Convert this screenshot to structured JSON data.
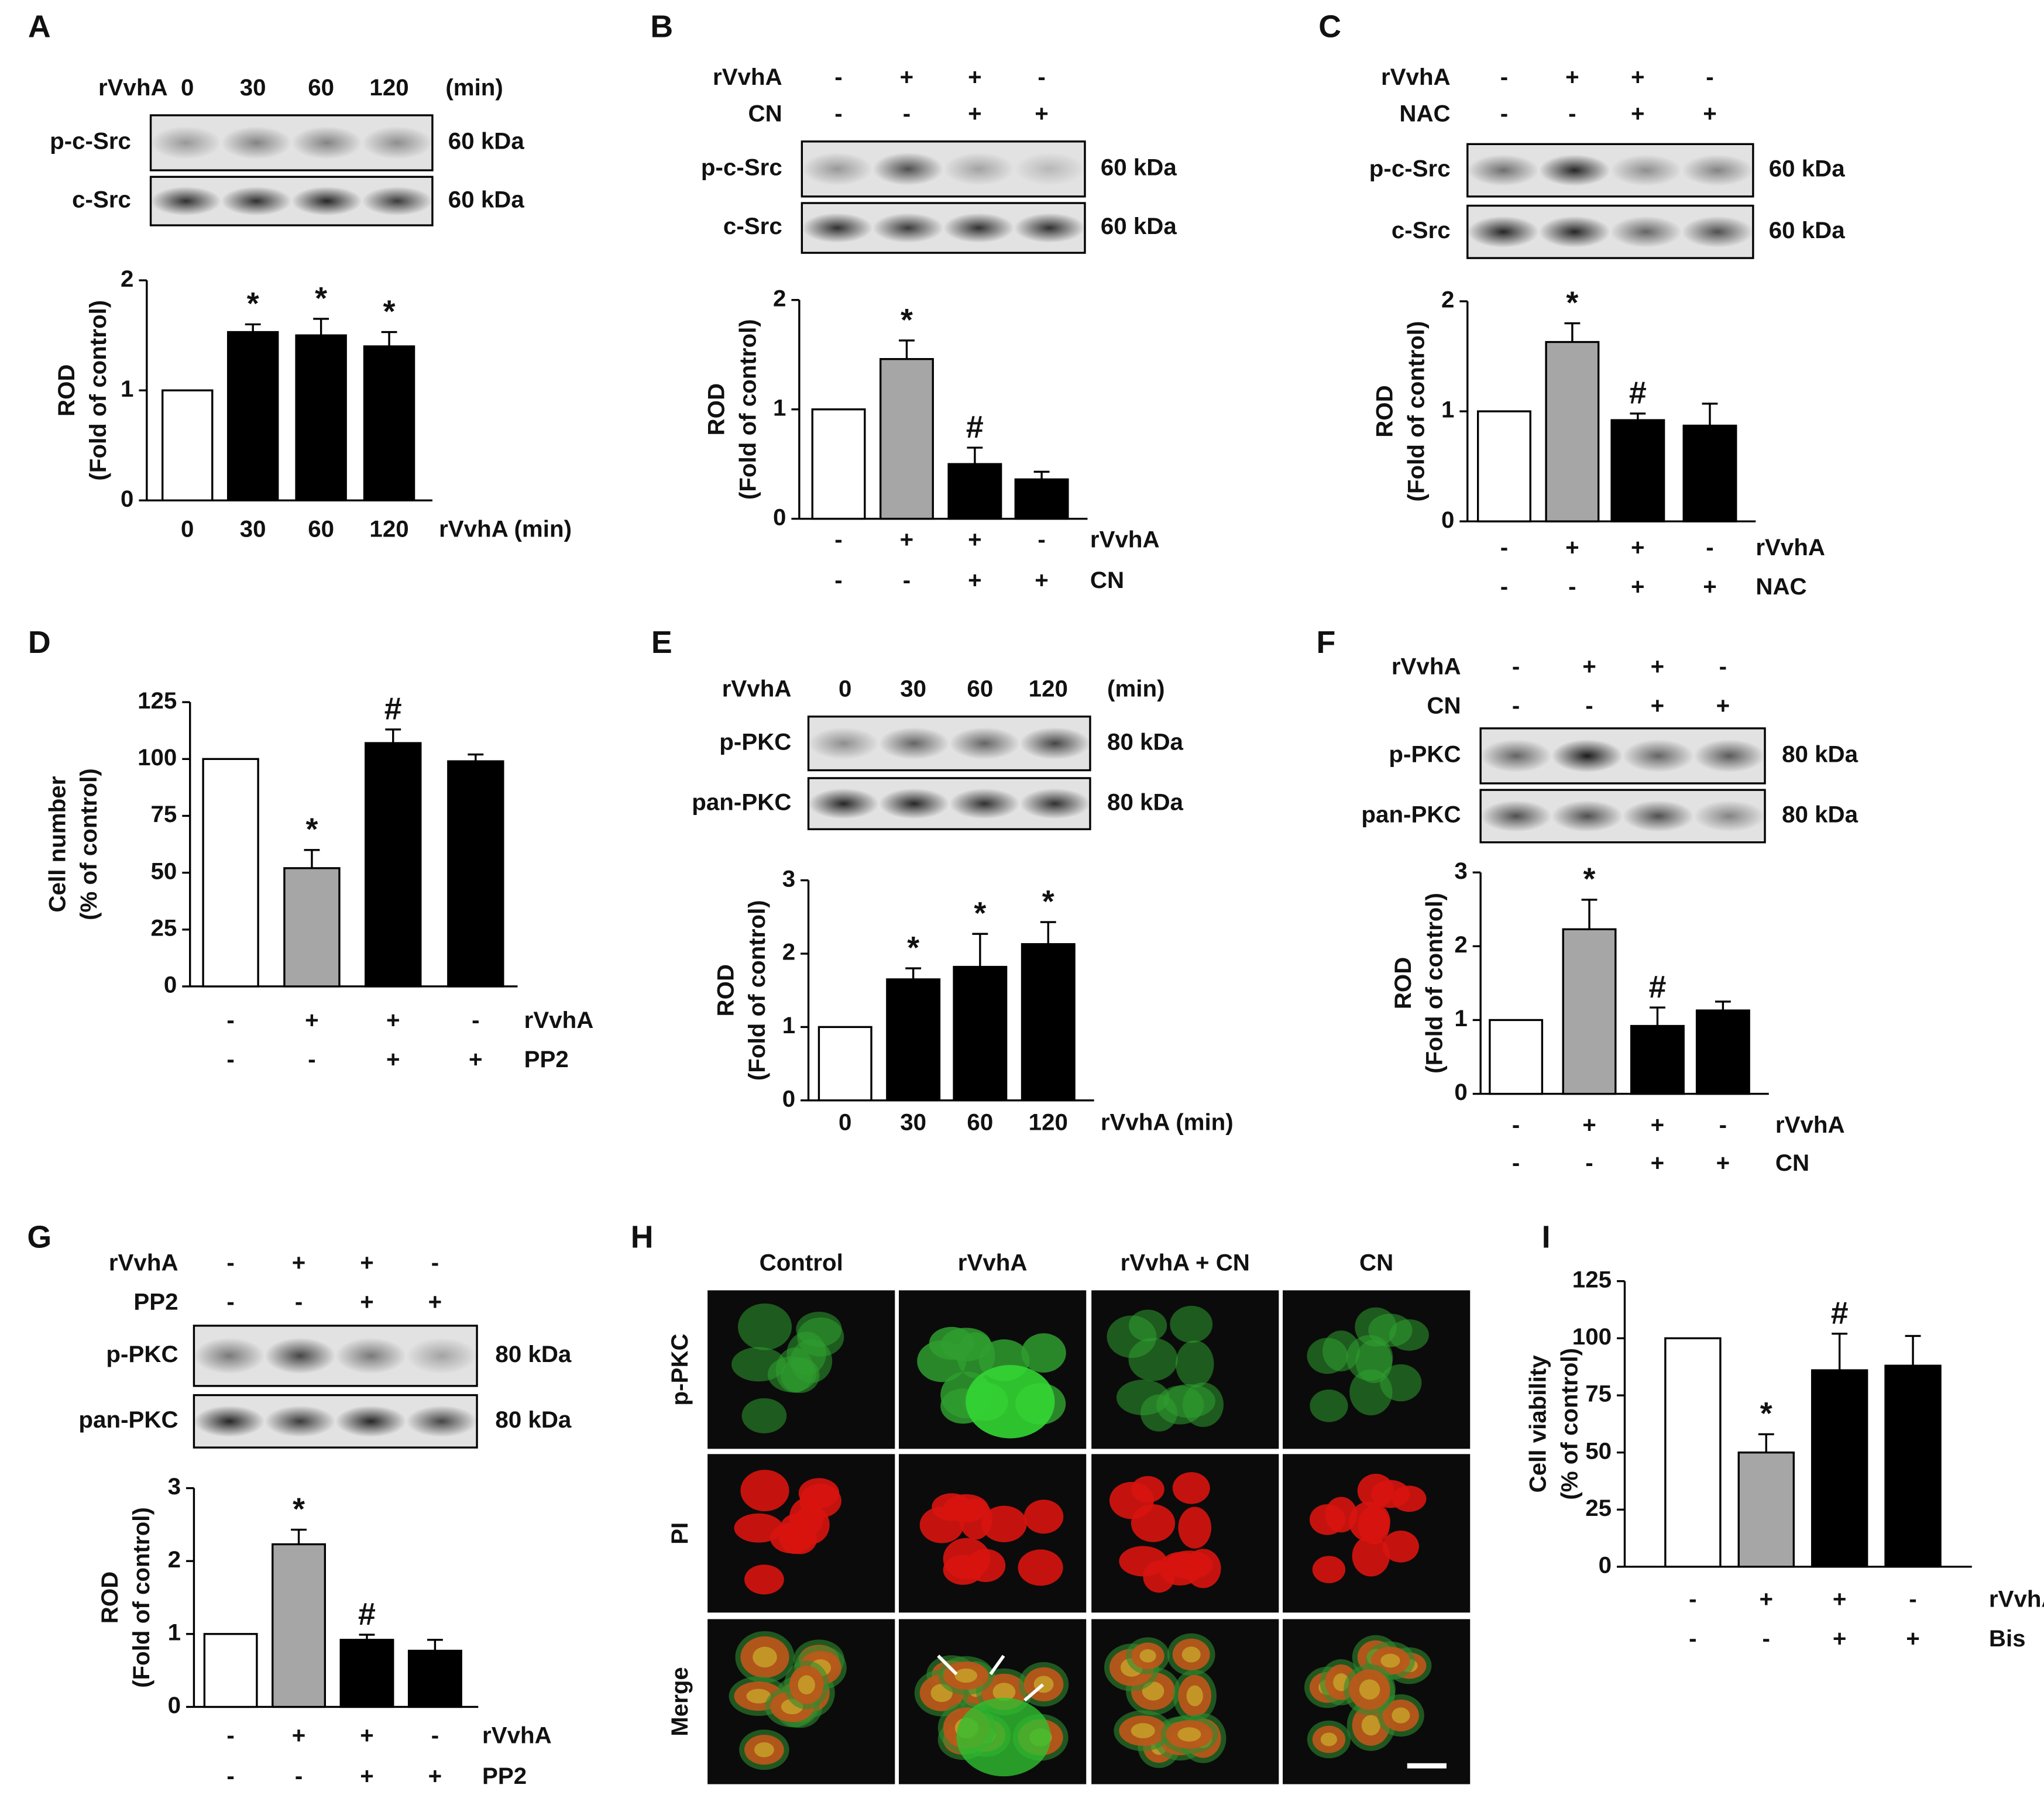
{
  "chart_data": [
    {
      "type": "bar",
      "panel": "A",
      "blot": {
        "header": [
          {
            "name": "rVvhA",
            "signs": [
              "0",
              "30",
              "60",
              "120"
            ],
            "unit": "(min)"
          }
        ],
        "rows": [
          {
            "name": "p-c-Src",
            "size": "60 kDa"
          },
          {
            "name": "c-Src",
            "size": "60 kDa"
          }
        ]
      },
      "ylabel": [
        "ROD",
        "(Fold of control)"
      ],
      "ylim": [
        0,
        2
      ],
      "yticks": [
        0,
        1,
        2
      ],
      "categories": [
        "0",
        "30",
        "60",
        "120"
      ],
      "xlabel": "rVvhA (min)",
      "values": [
        1,
        1.53,
        1.5,
        1.4
      ],
      "errors": [
        null,
        0.07,
        0.15,
        0.13
      ],
      "colors": [
        "#ffffff",
        "#000000",
        "#000000",
        "#000000"
      ],
      "annotations": [
        null,
        "*",
        "*",
        "*"
      ]
    },
    {
      "type": "bar",
      "panel": "B",
      "blot": {
        "header": [
          {
            "name": "rVvhA",
            "signs": [
              "-",
              "+",
              "+",
              "-"
            ]
          },
          {
            "name": "CN",
            "signs": [
              "-",
              "-",
              "+",
              "+"
            ]
          }
        ],
        "rows": [
          {
            "name": "p-c-Src",
            "size": "60 kDa"
          },
          {
            "name": "c-Src",
            "size": "60 kDa"
          }
        ]
      },
      "ylabel": [
        "ROD",
        "(Fold of control)"
      ],
      "ylim": [
        0,
        2
      ],
      "yticks": [
        0,
        1,
        2
      ],
      "conditions": [
        {
          "name": "rVvhA",
          "signs": [
            "-",
            "+",
            "+",
            "-"
          ]
        },
        {
          "name": "CN",
          "signs": [
            "-",
            "-",
            "+",
            "+"
          ]
        }
      ],
      "values": [
        1,
        1.46,
        0.5,
        0.36
      ],
      "errors": [
        null,
        0.17,
        0.15,
        0.07
      ],
      "colors": [
        "#ffffff",
        "#a6a6a6",
        "#000000",
        "#000000"
      ],
      "annotations": [
        null,
        "*",
        "#",
        null
      ]
    },
    {
      "type": "bar",
      "panel": "C",
      "blot": {
        "header": [
          {
            "name": "rVvhA",
            "signs": [
              "-",
              "+",
              "+",
              "-"
            ]
          },
          {
            "name": "NAC",
            "signs": [
              "-",
              "-",
              "+",
              "+"
            ]
          }
        ],
        "rows": [
          {
            "name": "p-c-Src",
            "size": "60 kDa"
          },
          {
            "name": "c-Src",
            "size": "60 kDa"
          }
        ]
      },
      "ylabel": [
        "ROD",
        "(Fold of control)"
      ],
      "ylim": [
        0,
        2
      ],
      "yticks": [
        0,
        1,
        2
      ],
      "conditions": [
        {
          "name": "rVvhA",
          "signs": [
            "-",
            "+",
            "+",
            "-"
          ]
        },
        {
          "name": "NAC",
          "signs": [
            "-",
            "-",
            "+",
            "+"
          ]
        }
      ],
      "values": [
        1,
        1.63,
        0.92,
        0.87
      ],
      "errors": [
        null,
        0.17,
        0.06,
        0.2
      ],
      "colors": [
        "#ffffff",
        "#a6a6a6",
        "#000000",
        "#000000"
      ],
      "annotations": [
        null,
        "*",
        "#",
        null
      ]
    },
    {
      "type": "bar",
      "panel": "D",
      "ylabel": [
        "Cell number",
        "(% of control)"
      ],
      "ylim": [
        0,
        125
      ],
      "yticks": [
        0,
        25,
        50,
        75,
        100,
        125
      ],
      "conditions": [
        {
          "name": "rVvhA",
          "signs": [
            "-",
            "+",
            "+",
            "-"
          ]
        },
        {
          "name": "PP2",
          "signs": [
            "-",
            "-",
            "+",
            "+"
          ]
        }
      ],
      "values": [
        100,
        52,
        107,
        99
      ],
      "errors": [
        null,
        8,
        6,
        3
      ],
      "colors": [
        "#ffffff",
        "#a6a6a6",
        "#000000",
        "#000000"
      ],
      "annotations": [
        null,
        "*",
        "#",
        null
      ]
    },
    {
      "type": "bar",
      "panel": "E",
      "blot": {
        "header": [
          {
            "name": "rVvhA",
            "signs": [
              "0",
              "30",
              "60",
              "120"
            ],
            "unit": "(min)"
          }
        ],
        "rows": [
          {
            "name": "p-PKC",
            "size": "80 kDa"
          },
          {
            "name": "pan-PKC",
            "size": "80 kDa"
          }
        ]
      },
      "ylabel": [
        "ROD",
        "(Fold of control)"
      ],
      "ylim": [
        0,
        3
      ],
      "yticks": [
        0,
        1,
        2,
        3
      ],
      "categories": [
        "0",
        "30",
        "60",
        "120"
      ],
      "xlabel": "rVvhA (min)",
      "values": [
        1,
        1.65,
        1.82,
        2.13
      ],
      "errors": [
        null,
        0.15,
        0.45,
        0.3
      ],
      "colors": [
        "#ffffff",
        "#000000",
        "#000000",
        "#000000"
      ],
      "annotations": [
        null,
        "*",
        "*",
        "*"
      ]
    },
    {
      "type": "bar",
      "panel": "F",
      "blot": {
        "header": [
          {
            "name": "rVvhA",
            "signs": [
              "-",
              "+",
              "+",
              "-"
            ]
          },
          {
            "name": "CN",
            "signs": [
              "-",
              "-",
              "+",
              "+"
            ]
          }
        ],
        "rows": [
          {
            "name": "p-PKC",
            "size": "80 kDa"
          },
          {
            "name": "pan-PKC",
            "size": "80 kDa"
          }
        ]
      },
      "ylabel": [
        "ROD",
        "(Fold of control)"
      ],
      "ylim": [
        0,
        3
      ],
      "yticks": [
        0,
        1,
        2,
        3
      ],
      "conditions": [
        {
          "name": "rVvhA",
          "signs": [
            "-",
            "+",
            "+",
            "-"
          ]
        },
        {
          "name": "CN",
          "signs": [
            "-",
            "-",
            "+",
            "+"
          ]
        }
      ],
      "values": [
        1,
        2.23,
        0.92,
        1.13
      ],
      "errors": [
        null,
        0.4,
        0.25,
        0.12
      ],
      "colors": [
        "#ffffff",
        "#a6a6a6",
        "#000000",
        "#000000"
      ],
      "annotations": [
        null,
        "*",
        "#",
        null
      ]
    },
    {
      "type": "bar",
      "panel": "G",
      "blot": {
        "header": [
          {
            "name": "rVvhA",
            "signs": [
              "-",
              "+",
              "+",
              "-"
            ]
          },
          {
            "name": "PP2",
            "signs": [
              "-",
              "-",
              "+",
              "+"
            ]
          }
        ],
        "rows": [
          {
            "name": "p-PKC",
            "size": "80 kDa"
          },
          {
            "name": "pan-PKC",
            "size": "80 kDa"
          }
        ]
      },
      "ylabel": [
        "ROD",
        "(Fold of control)"
      ],
      "ylim": [
        0,
        3
      ],
      "yticks": [
        0,
        1,
        2,
        3
      ],
      "conditions": [
        {
          "name": "rVvhA",
          "signs": [
            "-",
            "+",
            "+",
            "-"
          ]
        },
        {
          "name": "PP2",
          "signs": [
            "-",
            "-",
            "+",
            "+"
          ]
        }
      ],
      "values": [
        1,
        2.23,
        0.92,
        0.77
      ],
      "errors": [
        null,
        0.2,
        0.07,
        0.15
      ],
      "colors": [
        "#ffffff",
        "#a6a6a6",
        "#000000",
        "#000000"
      ],
      "annotations": [
        null,
        "*",
        "#",
        null
      ]
    },
    {
      "type": "bar",
      "panel": "I",
      "ylabel": [
        "Cell viability",
        "(% of control)"
      ],
      "ylim": [
        0,
        125
      ],
      "yticks": [
        0,
        25,
        50,
        75,
        100,
        125
      ],
      "conditions": [
        {
          "name": "rVvhA",
          "signs": [
            "-",
            "+",
            "+",
            "-"
          ]
        },
        {
          "name": "Bis",
          "signs": [
            "-",
            "-",
            "+",
            "+"
          ]
        }
      ],
      "values": [
        100,
        50,
        86,
        88
      ],
      "errors": [
        null,
        8,
        16,
        13
      ],
      "colors": [
        "#ffffff",
        "#a6a6a6",
        "#000000",
        "#000000"
      ],
      "annotations": [
        null,
        "*",
        "#",
        null
      ]
    }
  ],
  "micrograph": {
    "panel": "H",
    "columns": [
      "Control",
      "rVvhA",
      "rVvhA + CN",
      "CN"
    ],
    "rows": [
      "p-PKC",
      "PI",
      "Merge"
    ]
  }
}
